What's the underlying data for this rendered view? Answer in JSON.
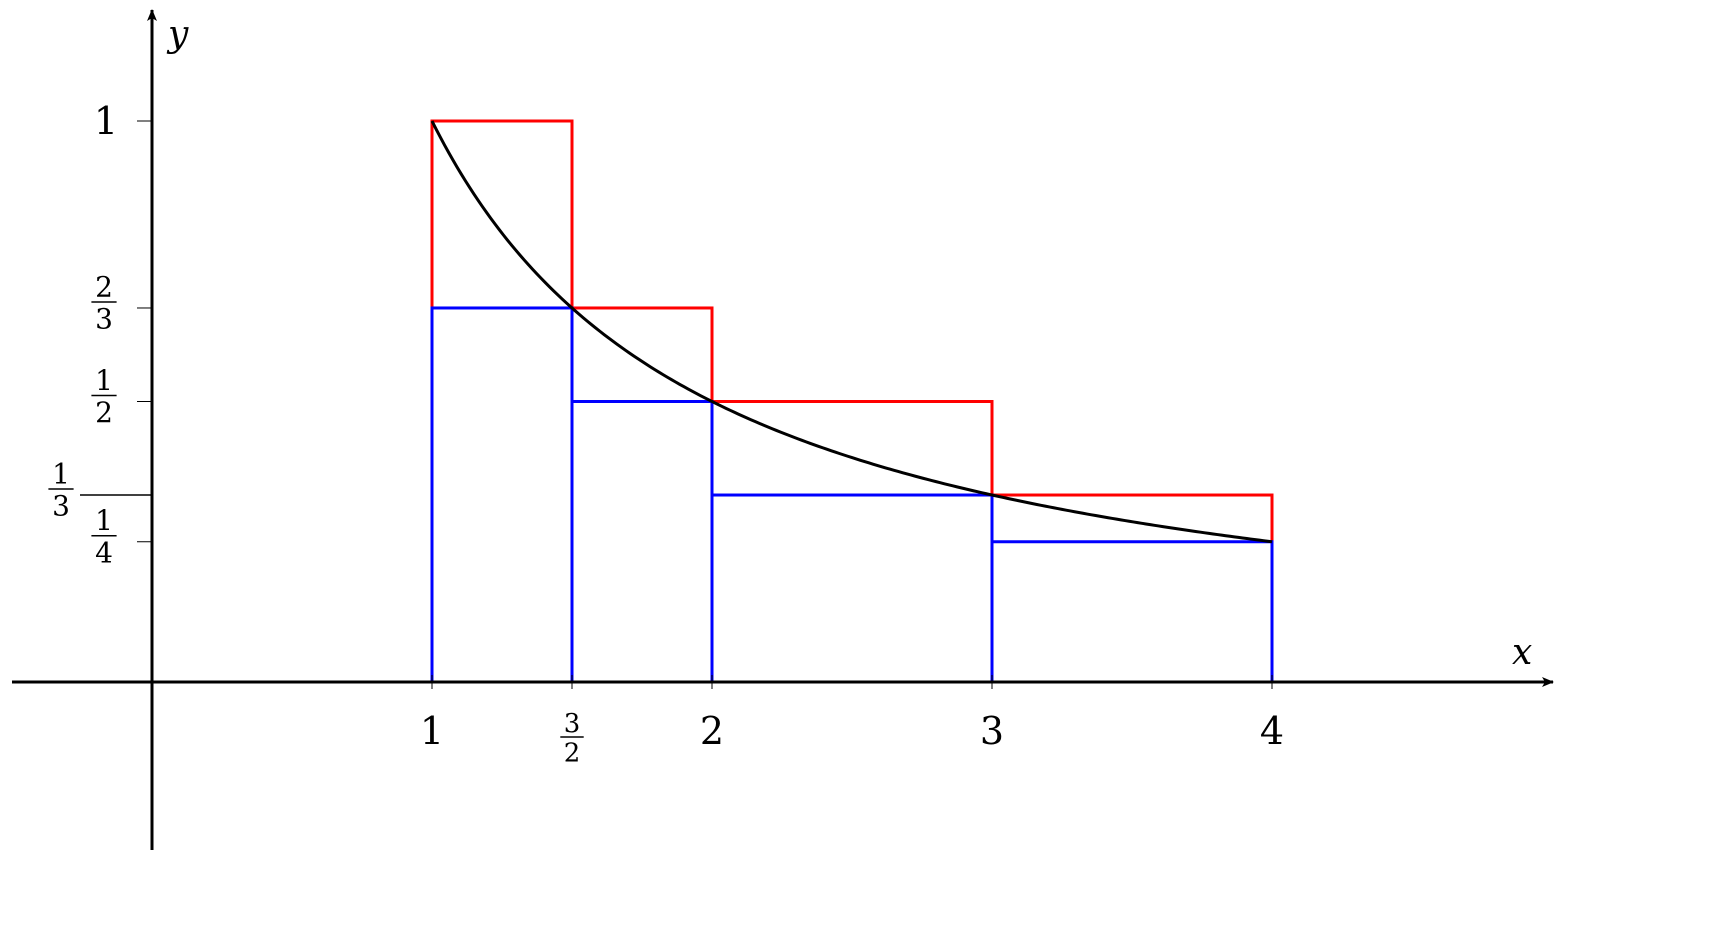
{
  "chart_data": {
    "type": "line",
    "title": "",
    "xlabel": "x",
    "ylabel": "y",
    "xlim": [
      -0.5,
      5
    ],
    "ylim": [
      -0.6,
      1.2
    ],
    "grid": false,
    "x_ticks": [
      {
        "value": 1,
        "label": "1"
      },
      {
        "value": 1.5,
        "num": "3",
        "den": "2"
      },
      {
        "value": 2,
        "label": "2"
      },
      {
        "value": 3,
        "label": "3"
      },
      {
        "value": 4,
        "label": "4"
      }
    ],
    "y_ticks": [
      {
        "value": 1,
        "label": "1"
      },
      {
        "value": 0.6667,
        "num": "2",
        "den": "3"
      },
      {
        "value": 0.5,
        "num": "1",
        "den": "2"
      },
      {
        "value": 0.25,
        "num": "1",
        "den": "4"
      }
    ],
    "y_marker": {
      "value": 0.3333,
      "num": "1",
      "den": "3"
    },
    "curve": {
      "function": "1/x",
      "domain": [
        1,
        4
      ],
      "color": "#000000"
    },
    "series": [
      {
        "kind": "upper-rectangles",
        "color": "#ff0000",
        "rects": [
          {
            "x0": 1,
            "x1": 1.5,
            "height": 1
          },
          {
            "x0": 1.5,
            "x1": 2,
            "height": 0.6667
          },
          {
            "x0": 2,
            "x1": 3,
            "height": 0.5
          },
          {
            "x0": 3,
            "x1": 4,
            "height": 0.3333
          }
        ]
      },
      {
        "kind": "lower-rectangles",
        "color": "#0000ff",
        "rects": [
          {
            "x0": 1,
            "x1": 1.5,
            "height": 0.6667
          },
          {
            "x0": 1.5,
            "x1": 2,
            "height": 0.5
          },
          {
            "x0": 2,
            "x1": 3,
            "height": 0.3333
          },
          {
            "x0": 3,
            "x1": 4,
            "height": 0.25
          }
        ]
      }
    ]
  }
}
